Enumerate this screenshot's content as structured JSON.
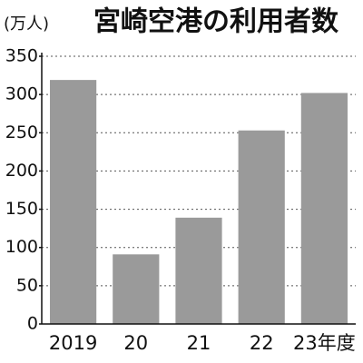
{
  "chart_data": {
    "type": "bar",
    "title": "宮崎空港の利用者数",
    "y_label": "(万人)",
    "categories": [
      "2019",
      "20",
      "21",
      "22",
      "23年度"
    ],
    "values": [
      319,
      91,
      139,
      253,
      302
    ],
    "color": "#9a9a9a",
    "ylim": [
      0,
      350
    ],
    "yticks": [
      0,
      50,
      100,
      150,
      200,
      250,
      300,
      350
    ],
    "grid": true
  }
}
